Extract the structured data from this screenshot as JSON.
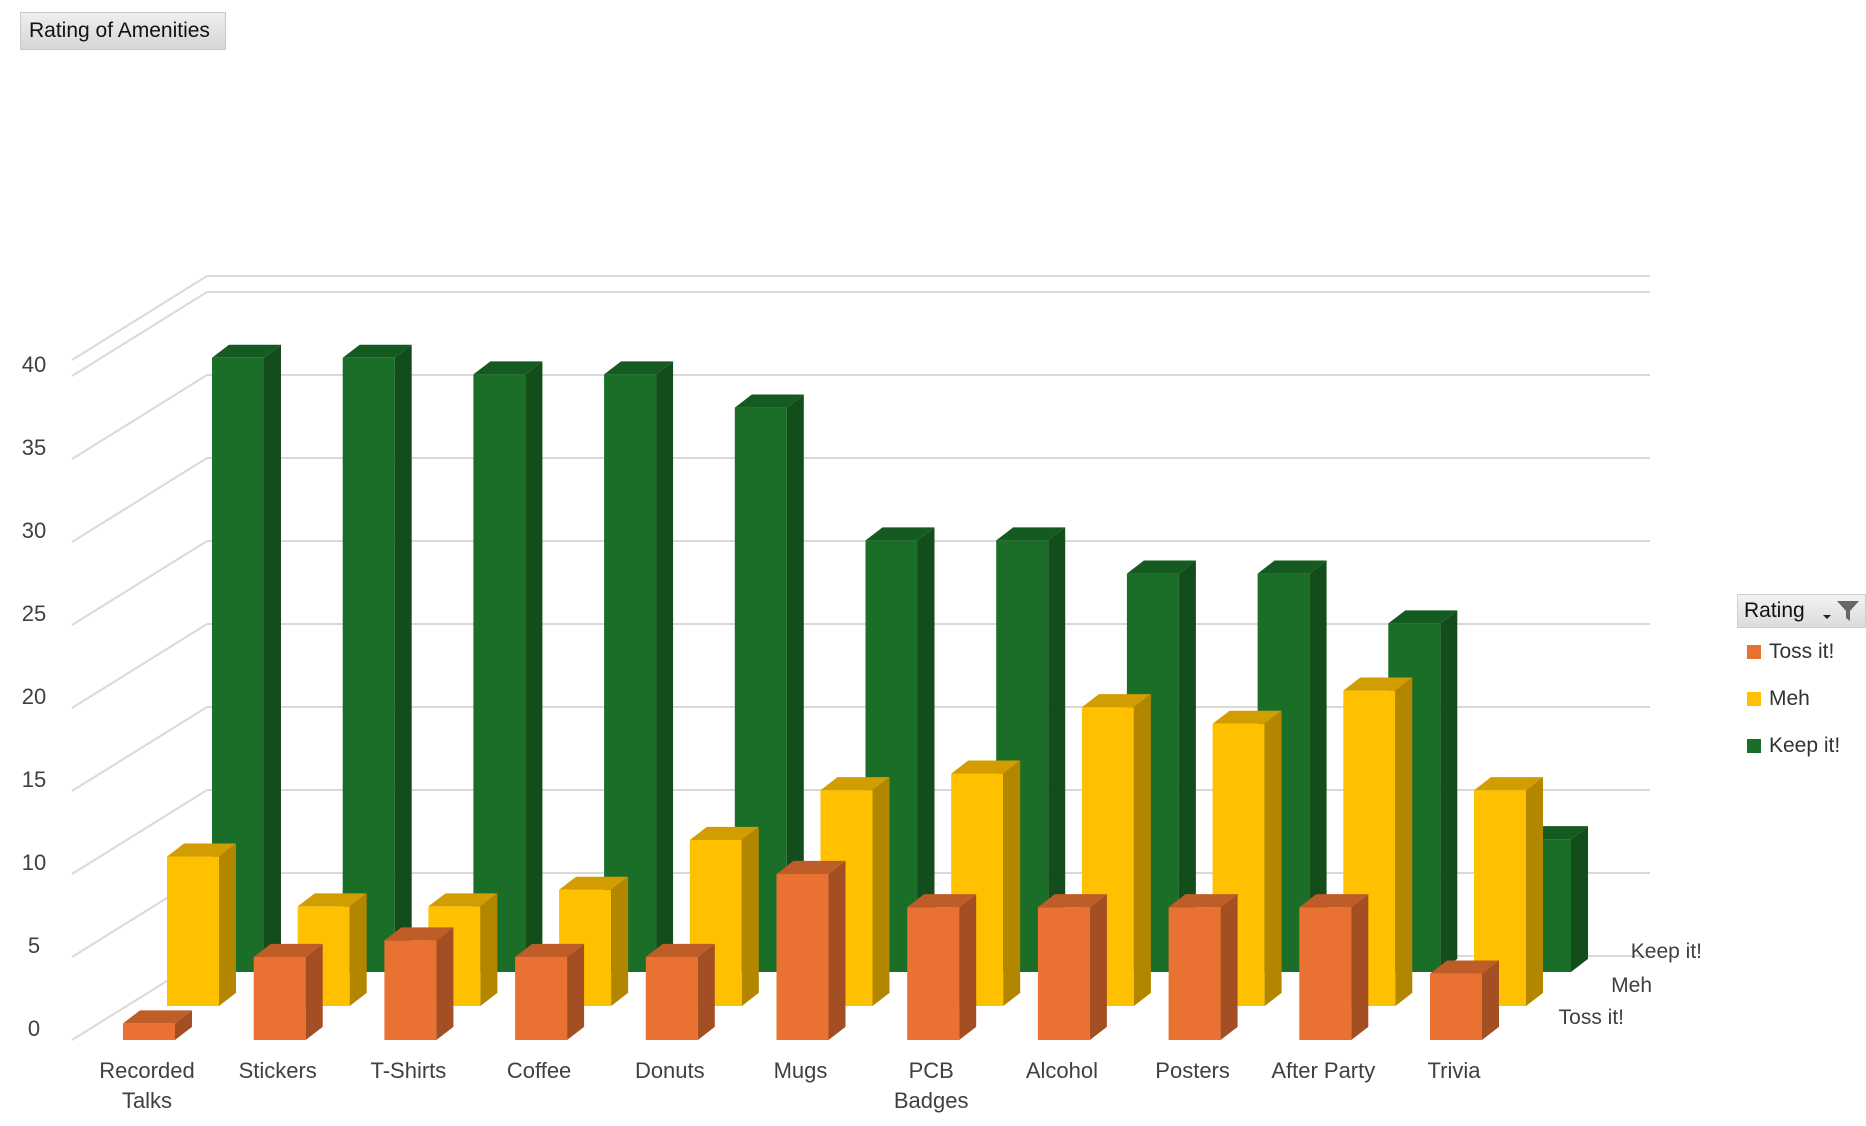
{
  "chart_data": {
    "type": "bar",
    "subtype": "3d-column",
    "title": "Rating of Amenities",
    "categories": [
      "Recorded Talks",
      "Stickers",
      "T-Shirts",
      "Coffee",
      "Donuts",
      "Mugs",
      "PCB Badges",
      "Alcohol",
      "Posters",
      "After Party",
      "Trivia"
    ],
    "series": [
      {
        "name": "Toss it!",
        "color": "#E97132",
        "values": [
          1,
          5,
          6,
          5,
          5,
          10,
          8,
          8,
          8,
          8,
          4
        ]
      },
      {
        "name": "Meh",
        "color": "#FFC000",
        "values": [
          9,
          6,
          6,
          7,
          10,
          13,
          14,
          18,
          17,
          19,
          13
        ]
      },
      {
        "name": "Keep it!",
        "color": "#1A6E27",
        "values": [
          37,
          37,
          36,
          36,
          34,
          26,
          26,
          24,
          24,
          21,
          8
        ]
      }
    ],
    "depth_labels": [
      "Toss it!",
      "Meh",
      "Keep it!"
    ],
    "y_ticks": [
      "0",
      "5",
      "10",
      "15",
      "20",
      "25",
      "30",
      "35",
      "40"
    ],
    "ylim": [
      0,
      40
    ],
    "grid": true,
    "legend": {
      "title": "Rating",
      "position": "right",
      "items": [
        "Toss it!",
        "Meh",
        "Keep it!"
      ]
    },
    "filter_icon": "filter-funnel-icon",
    "sort_icon": "dropdown-arrow-icon"
  }
}
